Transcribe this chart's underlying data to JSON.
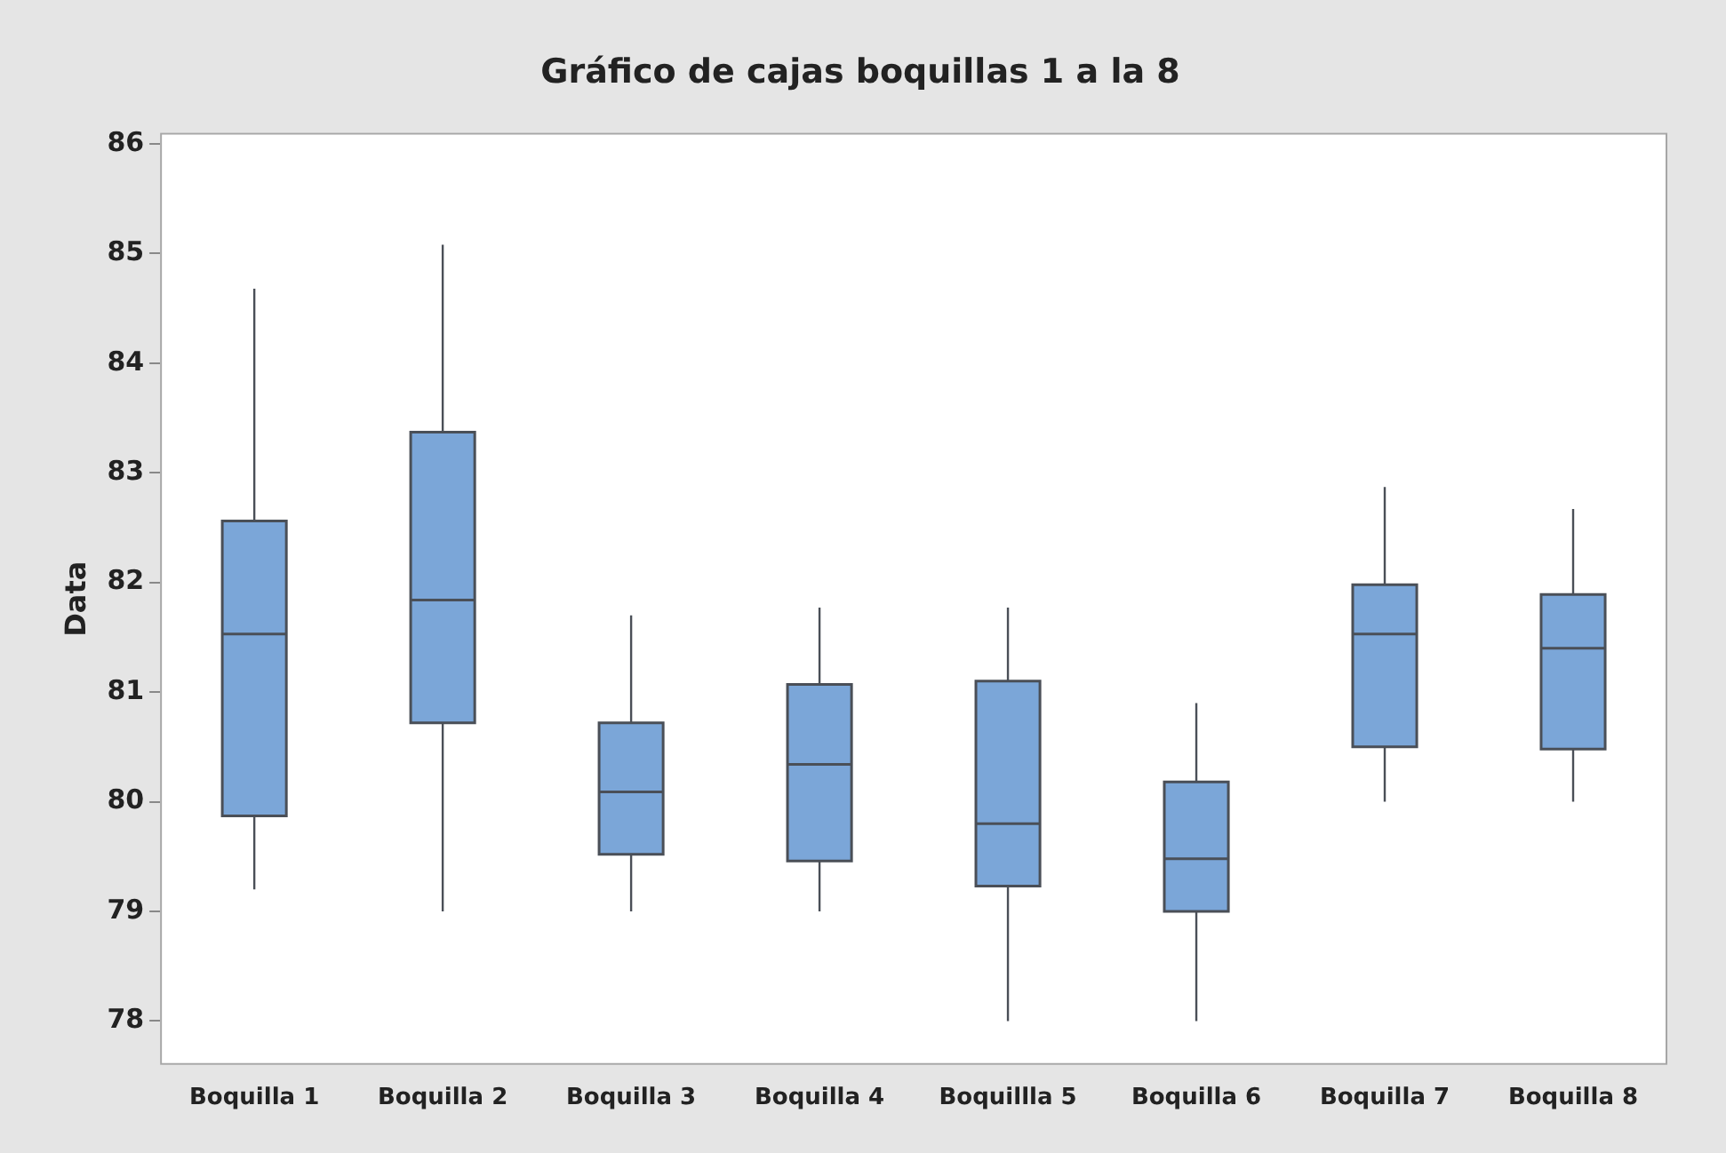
{
  "chart_data": {
    "type": "box",
    "title": "Gráfico de cajas boquillas 1 a la 8",
    "ylabel": "Data",
    "categories": [
      "Boquilla 1",
      "Boquilla 2",
      "Boquilla 3",
      "Boquilla 4",
      "Boquillla 5",
      "Boquilla 6",
      "Boquilla 7",
      "Boquilla 8"
    ],
    "color": "#7ba6d8",
    "boxes": [
      {
        "low": 79.2,
        "q1": 79.87,
        "q3": 82.56,
        "median": 81.53,
        "high": 84.68
      },
      {
        "low": 79.0,
        "q1": 80.72,
        "q3": 83.37,
        "median": 81.84,
        "high": 85.08
      },
      {
        "low": 79.0,
        "q1": 79.52,
        "q3": 80.72,
        "median": 80.09,
        "high": 81.7
      },
      {
        "low": 79.0,
        "q1": 79.46,
        "q3": 81.07,
        "median": 80.34,
        "high": 81.77
      },
      {
        "low": 78.0,
        "q1": 79.23,
        "q3": 81.1,
        "median": 79.8,
        "high": 81.77
      },
      {
        "low": 78.0,
        "q1": 79.0,
        "q3": 80.18,
        "median": 79.48,
        "high": 80.9
      },
      {
        "low": 80.0,
        "q1": 80.5,
        "q3": 81.98,
        "median": 81.53,
        "high": 82.87
      },
      {
        "low": 80.0,
        "q1": 80.48,
        "q3": 81.89,
        "median": 81.4,
        "high": 82.67
      }
    ],
    "ylim": [
      77.6,
      86.1
    ],
    "yticks": [
      78,
      79,
      80,
      81,
      82,
      83,
      84,
      85,
      86
    ]
  }
}
